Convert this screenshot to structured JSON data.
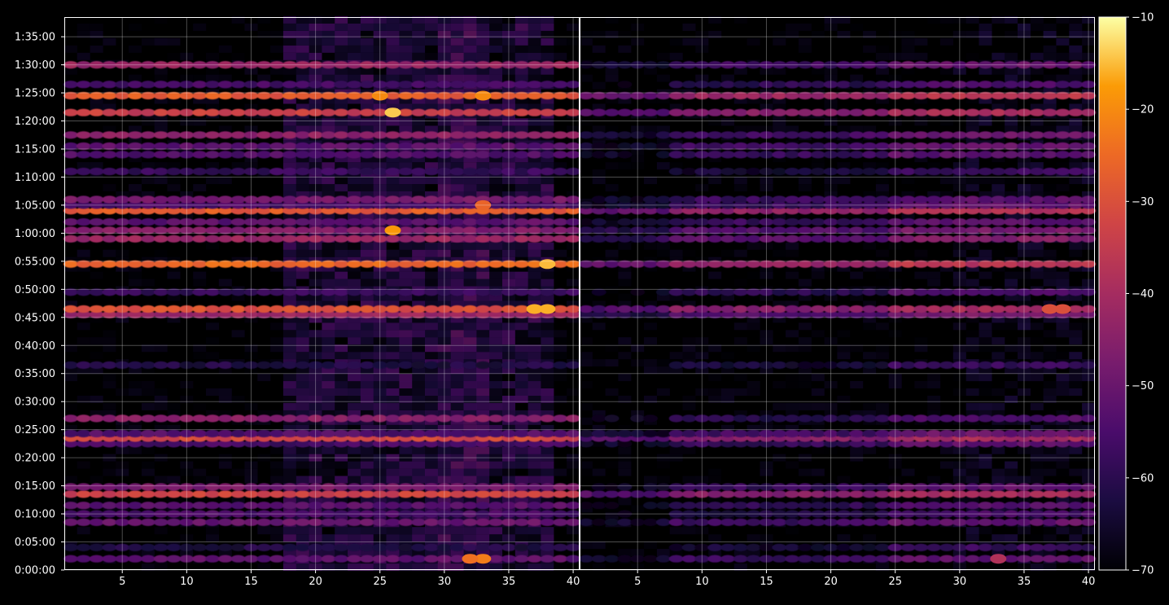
{
  "chart_data": {
    "type": "heatmap",
    "panels": [
      {
        "name": "",
        "xlim": [
          1,
          40
        ]
      },
      {
        "name": "",
        "xlim": [
          1,
          40
        ]
      }
    ],
    "x_ticks": [
      5,
      10,
      15,
      20,
      25,
      30,
      35,
      40
    ],
    "y_ticks": [
      "0:00:00",
      "0:05:00",
      "0:10:00",
      "0:15:00",
      "0:20:00",
      "0:25:00",
      "0:30:00",
      "0:35:00",
      "0:40:00",
      "0:45:00",
      "0:50:00",
      "0:55:00",
      "1:00:00",
      "1:05:00",
      "1:10:00",
      "1:15:00",
      "1:20:00",
      "1:25:00",
      "1:30:00",
      "1:35:00"
    ],
    "ylim_minutes": [
      0,
      98.5
    ],
    "grid": true,
    "colorbar": {
      "colormap": "inferno",
      "range": [
        -70,
        -10
      ],
      "ticks": [
        "−70",
        "−60",
        "−50",
        "−40",
        "−30",
        "−20",
        "−10"
      ]
    },
    "bands": [
      {
        "minute": 2.0,
        "left": -52,
        "right": -58
      },
      {
        "minute": 4.0,
        "left": -62,
        "right": -64
      },
      {
        "minute": 8.5,
        "left": -50,
        "right": -57
      },
      {
        "minute": 10.0,
        "left": -55,
        "right": -62
      },
      {
        "minute": 11.5,
        "left": -53,
        "right": -60
      },
      {
        "minute": 13.5,
        "left": -33,
        "right": -46
      },
      {
        "minute": 14.8,
        "left": -48,
        "right": -58
      },
      {
        "minute": 22.5,
        "left": -56,
        "right": -58
      },
      {
        "minute": 23.5,
        "left": -32,
        "right": -46
      },
      {
        "minute": 24.3,
        "left": -54,
        "right": -56
      },
      {
        "minute": 27.0,
        "left": -45,
        "right": -60
      },
      {
        "minute": 36.5,
        "left": -62,
        "right": -64
      },
      {
        "minute": 45.5,
        "left": -42,
        "right": -54
      },
      {
        "minute": 46.5,
        "left": -30,
        "right": -46
      },
      {
        "minute": 49.5,
        "left": -58,
        "right": -60
      },
      {
        "minute": 54.5,
        "left": -26,
        "right": -43
      },
      {
        "minute": 59.0,
        "left": -42,
        "right": -52
      },
      {
        "minute": 60.5,
        "left": -46,
        "right": -54
      },
      {
        "minute": 62.0,
        "left": -52,
        "right": -58
      },
      {
        "minute": 64.0,
        "left": -28,
        "right": -44
      },
      {
        "minute": 65.0,
        "left": -55,
        "right": -58
      },
      {
        "minute": 66.0,
        "left": -48,
        "right": -58
      },
      {
        "minute": 71.0,
        "left": -58,
        "right": -64
      },
      {
        "minute": 74.0,
        "left": -54,
        "right": -58
      },
      {
        "minute": 75.5,
        "left": -52,
        "right": -57
      },
      {
        "minute": 77.5,
        "left": -44,
        "right": -56
      },
      {
        "minute": 81.5,
        "left": -34,
        "right": -46
      },
      {
        "minute": 84.5,
        "left": -28,
        "right": -42
      },
      {
        "minute": 86.5,
        "left": -56,
        "right": -60
      },
      {
        "minute": 90.0,
        "left": -42,
        "right": -56
      }
    ],
    "hotspots": [
      {
        "panel": 0,
        "x": 26,
        "minute": 81.5,
        "value": -14
      },
      {
        "panel": 0,
        "x": 26,
        "minute": 60.5,
        "value": -18
      },
      {
        "panel": 0,
        "x": 38,
        "minute": 54.5,
        "value": -15
      },
      {
        "panel": 0,
        "x": 37,
        "minute": 46.5,
        "value": -16
      },
      {
        "panel": 0,
        "x": 38,
        "minute": 46.5,
        "value": -16
      },
      {
        "panel": 0,
        "x": 33,
        "minute": 2.0,
        "value": -22
      },
      {
        "panel": 0,
        "x": 32,
        "minute": 2.0,
        "value": -24
      },
      {
        "panel": 0,
        "x": 33,
        "minute": 65.0,
        "value": -26
      },
      {
        "panel": 0,
        "x": 25,
        "minute": 84.5,
        "value": -20
      },
      {
        "panel": 0,
        "x": 33,
        "minute": 84.5,
        "value": -20
      },
      {
        "panel": 1,
        "x": 33,
        "minute": 2.0,
        "value": -38
      },
      {
        "panel": 1,
        "x": 37,
        "minute": 46.5,
        "value": -30
      },
      {
        "panel": 1,
        "x": 38,
        "minute": 46.5,
        "value": -30
      }
    ]
  }
}
